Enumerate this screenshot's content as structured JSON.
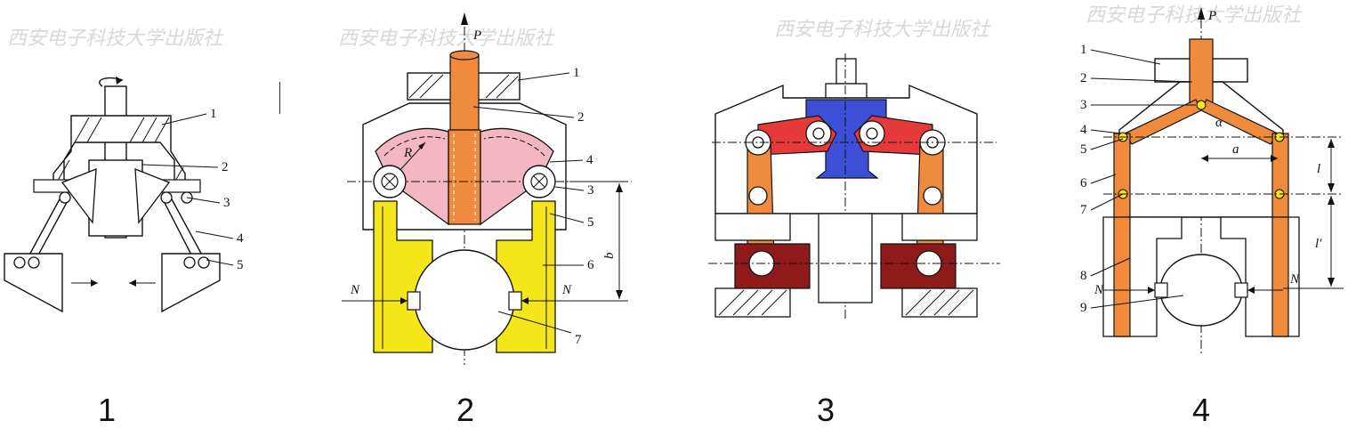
{
  "figures": [
    {
      "caption": "1",
      "labels": [
        "1",
        "2",
        "3",
        "4",
        "5"
      ]
    },
    {
      "caption": "2",
      "labels": [
        "1",
        "2",
        "3",
        "4",
        "5",
        "6",
        "7"
      ],
      "force": "P",
      "radius": "R",
      "dim": "b",
      "normal_left": "N",
      "normal_right": "N"
    },
    {
      "caption": "3"
    },
    {
      "caption": "4",
      "labels": [
        "1",
        "2",
        "3",
        "4",
        "5",
        "6",
        "7",
        "8",
        "9"
      ],
      "force": "P",
      "angle": "α",
      "dim_a": "a",
      "dim_l": "l",
      "dim_l2": "l′",
      "normal_left": "N",
      "normal_right": "N"
    }
  ],
  "watermark": "西安电子科技大学出版社",
  "colors": {
    "orange": "#f08a3c",
    "pink": "#f4b6c2",
    "yellow": "#f5e61a",
    "blue": "#3d4fd6",
    "red": "#e63a3a",
    "maroon": "#8e1a1a",
    "yellow_dot": "#f5e61a"
  }
}
